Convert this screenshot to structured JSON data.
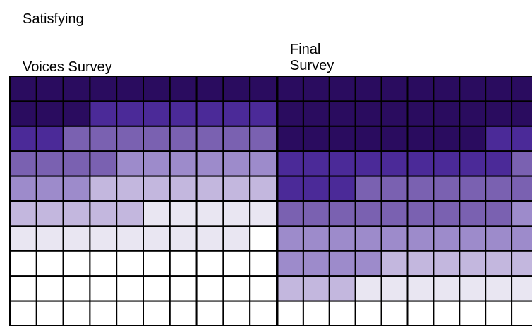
{
  "chart_data": {
    "type": "heatmap",
    "title": "Satisfying",
    "colors": {
      "level1": "#2a0c5f",
      "level2": "#4b2a98",
      "level3": "#7a61b1",
      "level4": "#9d8bcb",
      "level5": "#c3b7de",
      "level6": "#e9e6f2",
      "level7": "#ffffff",
      "cell_border": "#000000"
    },
    "panels": [
      {
        "name": "Voices Survey",
        "rows": [
          [
            1,
            1,
            1,
            1,
            1,
            1,
            1,
            1,
            1,
            1
          ],
          [
            1,
            1,
            1,
            2,
            2,
            2,
            2,
            2,
            2,
            2
          ],
          [
            2,
            2,
            3,
            3,
            3,
            3,
            3,
            3,
            3,
            3
          ],
          [
            3,
            3,
            3,
            3,
            4,
            4,
            4,
            4,
            4,
            4
          ],
          [
            4,
            4,
            4,
            5,
            5,
            5,
            5,
            5,
            5,
            5
          ],
          [
            5,
            5,
            5,
            5,
            5,
            6,
            6,
            6,
            6,
            6
          ],
          [
            6,
            6,
            6,
            6,
            6,
            6,
            6,
            6,
            6,
            7
          ],
          [
            7,
            7,
            7,
            7,
            7,
            7,
            7,
            7,
            7,
            7
          ],
          [
            7,
            7,
            7,
            7,
            7,
            7,
            7,
            7,
            7,
            7
          ],
          [
            7,
            7,
            7,
            7,
            7,
            7,
            7,
            7,
            7,
            7
          ]
        ]
      },
      {
        "name": "Final\nSurvey",
        "rows": [
          [
            1,
            1,
            1,
            1,
            1,
            1,
            1,
            1,
            1,
            1
          ],
          [
            1,
            1,
            1,
            1,
            1,
            1,
            1,
            1,
            1,
            1
          ],
          [
            1,
            1,
            1,
            1,
            1,
            1,
            1,
            1,
            2,
            2
          ],
          [
            2,
            2,
            2,
            2,
            2,
            2,
            2,
            2,
            2,
            3
          ],
          [
            2,
            2,
            2,
            3,
            3,
            3,
            3,
            3,
            3,
            3
          ],
          [
            3,
            3,
            3,
            3,
            3,
            3,
            3,
            3,
            3,
            4
          ],
          [
            4,
            4,
            4,
            4,
            4,
            4,
            4,
            4,
            4,
            4
          ],
          [
            4,
            4,
            4,
            4,
            5,
            5,
            5,
            5,
            5,
            5
          ],
          [
            5,
            5,
            5,
            6,
            6,
            6,
            6,
            6,
            6,
            6
          ],
          [
            7,
            7,
            7,
            7,
            7,
            7,
            7,
            7,
            7,
            7
          ]
        ]
      }
    ]
  }
}
